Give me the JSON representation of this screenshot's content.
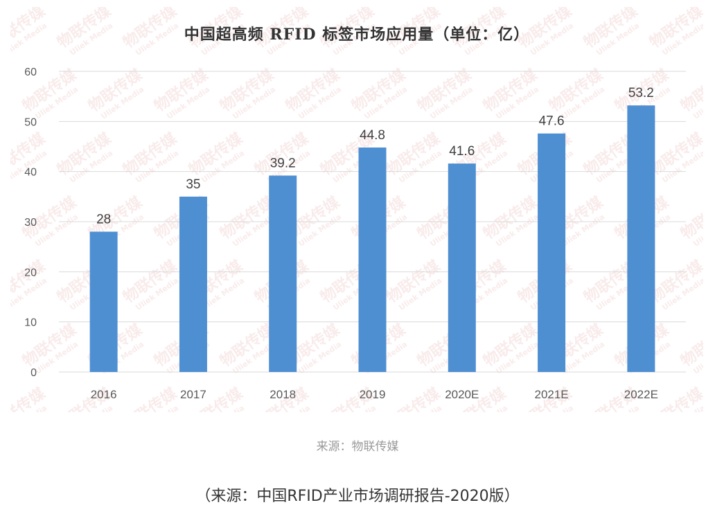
{
  "chart_data": {
    "type": "bar",
    "title": "中国超高频 RFID 标签市场应用量（单位：亿）",
    "categories": [
      "2016",
      "2017",
      "2018",
      "2019",
      "2020E",
      "2021E",
      "2022E"
    ],
    "values": [
      28,
      35,
      39.2,
      44.8,
      41.6,
      47.6,
      53.2
    ],
    "data_labels": [
      "28",
      "35",
      "39.2",
      "44.8",
      "41.6",
      "47.6",
      "53.2"
    ],
    "ylim": [
      0,
      60
    ],
    "yticks": [
      0,
      10,
      20,
      30,
      40,
      50,
      60
    ],
    "grid": true,
    "bar_color": "#4e8fd2"
  },
  "watermark": {
    "cn": "物联传媒",
    "en": "Uliek Media"
  },
  "source": "来源：物联传媒",
  "caption": "（来源：中国RFID产业市场调研报告-2020版）"
}
